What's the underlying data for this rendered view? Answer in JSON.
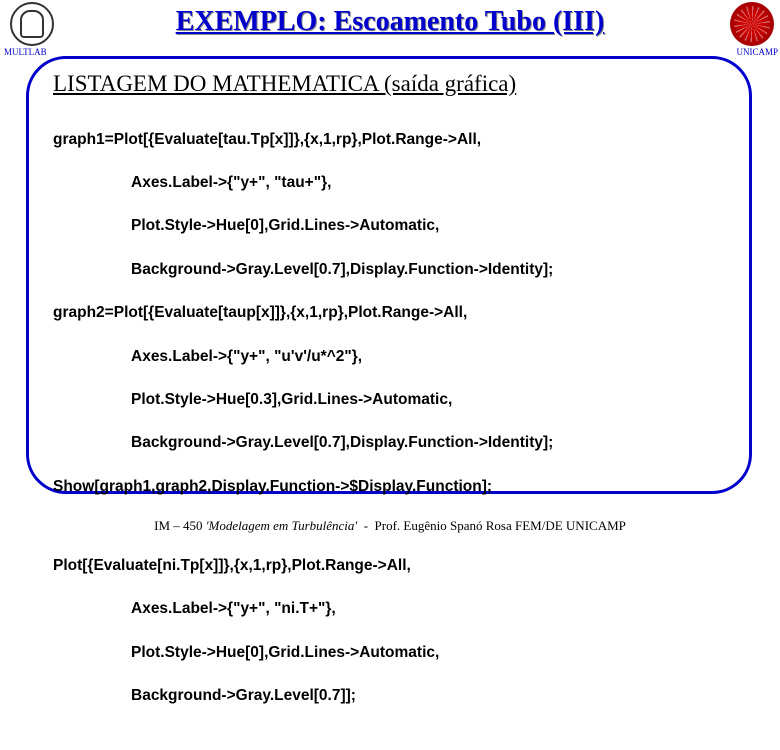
{
  "header": {
    "title": "EXEMPLO: Escoamento Tubo (III)",
    "left_label": "MULTLAB",
    "right_label": "UNICAMP"
  },
  "section_title": "LISTAGEM  DO  MATHEMATICA  (saída gráfica)",
  "code": {
    "l1": "graph1=Plot[{Evaluate[tau.Tp[x]]},{x,1,rp},Plot.Range->All,",
    "l2": "Axes.Label->{\"y+\", \"tau+\"},",
    "l3": "Plot.Style->Hue[0],Grid.Lines->Automatic,",
    "l4": "Background->Gray.Level[0.7],Display.Function->Identity];",
    "l5": "graph2=Plot[{Evaluate[taup[x]]},{x,1,rp},Plot.Range->All,",
    "l6": "Axes.Label->{\"y+\", \"u'v'/u*^2\"},",
    "l7": "Plot.Style->Hue[0.3],Grid.Lines->Automatic,",
    "l8": "Background->Gray.Level[0.7],Display.Function->Identity];",
    "l9": "Show[graph1,graph2,Display.Function->$Display.Function];",
    "l10": "Plot[{Evaluate[ni.Tp[x]]},{x,1,rp},Plot.Range->All,",
    "l11": "Axes.Label->{\"y+\", \"ni.T+\"},",
    "l12": "Plot.Style->Hue[0],Grid.Lines->Automatic,",
    "l13": "Background->Gray.Level[0.7]];"
  },
  "footer": "IM – 450 'Modelagem em Turbulência'  -  Prof. Eugênio Spanó Rosa FEM/DE UNICAMP"
}
